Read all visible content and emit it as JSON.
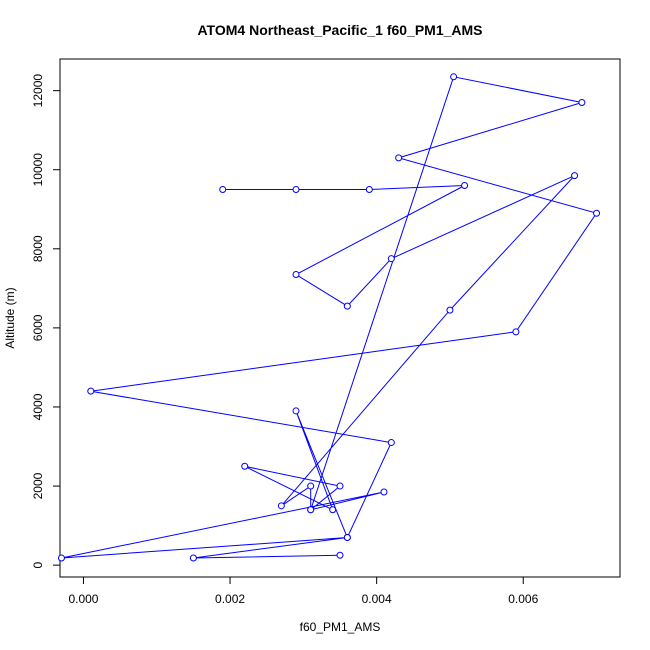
{
  "chart_data": {
    "type": "line",
    "title": "ATOM4 Northeast_Pacific_1 f60_PM1_AMS",
    "xlabel": "f60_PM1_AMS",
    "ylabel": "Altitude (m)",
    "xlim": [
      -0.00032,
      0.00732
    ],
    "ylim": [
      -300,
      12800
    ],
    "xticks": [
      0.0,
      0.002,
      0.004,
      0.006
    ],
    "xtick_labels": [
      "0.000",
      "0.002",
      "0.004",
      "0.006"
    ],
    "yticks": [
      0,
      2000,
      4000,
      6000,
      8000,
      10000,
      12000
    ],
    "ytick_labels": [
      "0",
      "2000",
      "4000",
      "6000",
      "8000",
      "10000",
      "12000"
    ],
    "grid": false,
    "markers": "open-circle",
    "color": "#0000ff",
    "series": [
      {
        "points": [
          {
            "x": 0.0035,
            "y": 250
          },
          {
            "x": 0.0015,
            "y": 180
          },
          {
            "x": 0.0036,
            "y": 700
          },
          {
            "x": -0.0003,
            "y": 180
          },
          {
            "x": 0.0041,
            "y": 1850
          },
          {
            "x": 0.0031,
            "y": 1400
          },
          {
            "x": 0.0035,
            "y": 2000
          },
          {
            "x": 0.0022,
            "y": 2500
          },
          {
            "x": 0.0034,
            "y": 1400
          },
          {
            "x": 0.0029,
            "y": 3900
          },
          {
            "x": 0.0036,
            "y": 700
          },
          {
            "x": 0.0036,
            "y": 700
          },
          {
            "x": 0.0042,
            "y": 3100
          },
          {
            "x": 0.0001,
            "y": 4400
          },
          {
            "x": 0.0059,
            "y": 5900
          },
          {
            "x": 0.007,
            "y": 8900
          },
          {
            "x": 0.0043,
            "y": 10300
          },
          {
            "x": 0.0068,
            "y": 11700
          },
          {
            "x": 0.00505,
            "y": 12350
          },
          {
            "x": 0.0031,
            "y": 1400
          },
          {
            "x": 0.0031,
            "y": 2000
          },
          {
            "x": 0.0027,
            "y": 1500
          },
          {
            "x": 0.005,
            "y": 6450
          },
          {
            "x": 0.0067,
            "y": 9850
          },
          {
            "x": 0.0042,
            "y": 7750
          },
          {
            "x": 0.0036,
            "y": 6550
          },
          {
            "x": 0.0029,
            "y": 7350
          },
          {
            "x": 0.0052,
            "y": 9600
          },
          {
            "x": 0.0039,
            "y": 9500
          },
          {
            "x": 0.0029,
            "y": 9500
          },
          {
            "x": 0.0019,
            "y": 9500
          }
        ]
      }
    ]
  }
}
